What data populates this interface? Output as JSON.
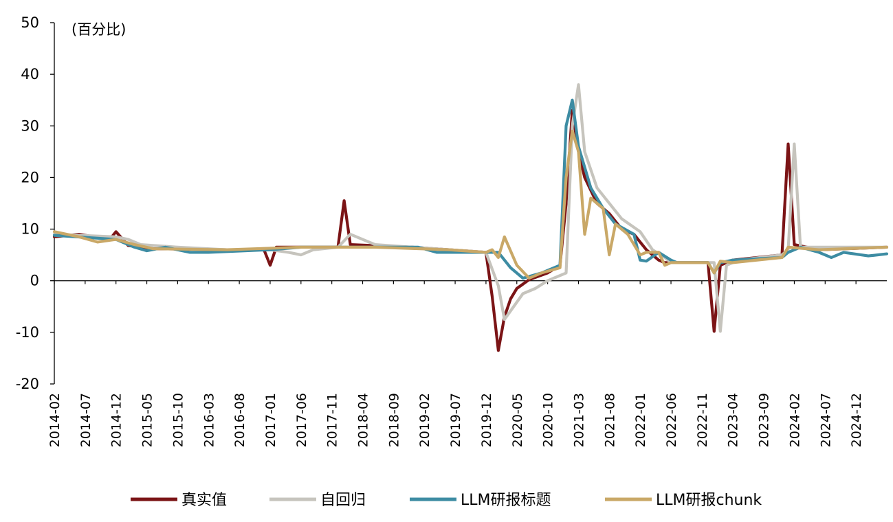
{
  "chart_data": {
    "type": "line",
    "unit_label": "(百分比)",
    "ylim": [
      -20,
      50
    ],
    "yticks": [
      50,
      40,
      30,
      20,
      10,
      0,
      -10,
      -20
    ],
    "xlim": [
      "2014-02",
      "2025-05"
    ],
    "xtick_labels": [
      "2014-02",
      "2014-07",
      "2014-12",
      "2015-05",
      "2015-10",
      "2016-03",
      "2016-08",
      "2017-01",
      "2017-06",
      "2017-11",
      "2018-04",
      "2018-09",
      "2019-02",
      "2019-07",
      "2019-12",
      "2020-05",
      "2020-10",
      "2021-03",
      "2021-08",
      "2022-01",
      "2022-06",
      "2022-11",
      "2023-04",
      "2023-09",
      "2024-02",
      "2024-07",
      "2024-12"
    ],
    "legend_position": "bottom",
    "grid": false,
    "series": [
      {
        "name": "真实值",
        "color": "#7b1416",
        "points": [
          [
            "2014-02",
            8.5
          ],
          [
            "2014-06",
            9.0
          ],
          [
            "2014-11",
            8.0
          ],
          [
            "2014-12",
            9.5
          ],
          [
            "2015-02",
            6.8
          ],
          [
            "2015-06",
            6.2
          ],
          [
            "2016-06",
            6.0
          ],
          [
            "2016-12",
            6.0
          ],
          [
            "2017-01",
            3.0
          ],
          [
            "2017-02",
            6.5
          ],
          [
            "2017-12",
            6.5
          ],
          [
            "2018-01",
            15.5
          ],
          [
            "2018-02",
            7.0
          ],
          [
            "2018-12",
            6.5
          ],
          [
            "2019-06",
            6.0
          ],
          [
            "2019-12",
            5.5
          ],
          [
            "2020-01",
            -3.0
          ],
          [
            "2020-02",
            -13.5
          ],
          [
            "2020-03",
            -7.0
          ],
          [
            "2020-04",
            -3.5
          ],
          [
            "2020-05",
            -1.5
          ],
          [
            "2020-07",
            0.2
          ],
          [
            "2020-10",
            1.5
          ],
          [
            "2020-12",
            3.0
          ],
          [
            "2021-01",
            15.0
          ],
          [
            "2021-02",
            33.0
          ],
          [
            "2021-03",
            25.0
          ],
          [
            "2021-04",
            20.0
          ],
          [
            "2021-06",
            15.0
          ],
          [
            "2021-08",
            13.0
          ],
          [
            "2021-10",
            10.0
          ],
          [
            "2021-12",
            9.0
          ],
          [
            "2022-01",
            7.5
          ],
          [
            "2022-02",
            6.0
          ],
          [
            "2022-04",
            4.0
          ],
          [
            "2022-05",
            3.5
          ],
          [
            "2022-12",
            3.5
          ],
          [
            "2023-01",
            -9.8
          ],
          [
            "2023-02",
            3.0
          ],
          [
            "2023-04",
            4.0
          ],
          [
            "2023-12",
            5.0
          ],
          [
            "2024-01",
            26.5
          ],
          [
            "2024-02",
            7.0
          ],
          [
            "2024-06",
            6.0
          ],
          [
            "2025-05",
            6.5
          ]
        ]
      },
      {
        "name": "自回归",
        "color": "#c6c4bd",
        "points": [
          [
            "2014-02",
            9.0
          ],
          [
            "2014-06",
            8.8
          ],
          [
            "2014-12",
            8.5
          ],
          [
            "2015-02",
            8.0
          ],
          [
            "2015-04",
            7.0
          ],
          [
            "2015-10",
            6.5
          ],
          [
            "2016-06",
            6.0
          ],
          [
            "2017-01",
            6.0
          ],
          [
            "2017-04",
            5.5
          ],
          [
            "2017-06",
            5.0
          ],
          [
            "2017-08",
            6.0
          ],
          [
            "2017-12",
            6.5
          ],
          [
            "2018-02",
            9.0
          ],
          [
            "2018-04",
            8.0
          ],
          [
            "2018-06",
            7.0
          ],
          [
            "2019-06",
            6.0
          ],
          [
            "2019-12",
            5.5
          ],
          [
            "2020-02",
            -1.0
          ],
          [
            "2020-03",
            -7.5
          ],
          [
            "2020-06",
            -2.5
          ],
          [
            "2020-08",
            -1.5
          ],
          [
            "2020-10",
            0.0
          ],
          [
            "2021-01",
            1.5
          ],
          [
            "2021-02",
            30.0
          ],
          [
            "2021-03",
            38.0
          ],
          [
            "2021-04",
            25.0
          ],
          [
            "2021-06",
            18.0
          ],
          [
            "2021-10",
            12.0
          ],
          [
            "2022-01",
            9.5
          ],
          [
            "2022-03",
            6.0
          ],
          [
            "2022-05",
            4.5
          ],
          [
            "2022-06",
            3.5
          ],
          [
            "2023-01",
            3.5
          ],
          [
            "2023-02",
            -9.8
          ],
          [
            "2023-03",
            3.0
          ],
          [
            "2023-05",
            4.0
          ],
          [
            "2023-12",
            5.0
          ],
          [
            "2024-01",
            6.0
          ],
          [
            "2024-02",
            26.5
          ],
          [
            "2024-03",
            6.5
          ],
          [
            "2024-06",
            6.5
          ],
          [
            "2025-05",
            6.5
          ]
        ]
      },
      {
        "name": "LLM研报标题",
        "color": "#3d8ca3",
        "points": [
          [
            "2014-02",
            8.8
          ],
          [
            "2014-12",
            8.0
          ],
          [
            "2015-03",
            6.5
          ],
          [
            "2015-05",
            5.8
          ],
          [
            "2015-08",
            6.5
          ],
          [
            "2015-12",
            5.5
          ],
          [
            "2016-03",
            5.5
          ],
          [
            "2017-01",
            6.0
          ],
          [
            "2017-06",
            6.5
          ],
          [
            "2017-12",
            6.5
          ],
          [
            "2018-06",
            6.5
          ],
          [
            "2019-01",
            6.5
          ],
          [
            "2019-04",
            5.5
          ],
          [
            "2019-12",
            5.5
          ],
          [
            "2020-02",
            5.5
          ],
          [
            "2020-04",
            2.5
          ],
          [
            "2020-06",
            0.5
          ],
          [
            "2020-09",
            1.5
          ],
          [
            "2020-12",
            3.0
          ],
          [
            "2021-01",
            30.0
          ],
          [
            "2021-02",
            35.0
          ],
          [
            "2021-03",
            26.0
          ],
          [
            "2021-05",
            18.0
          ],
          [
            "2021-07",
            14.0
          ],
          [
            "2021-09",
            11.0
          ],
          [
            "2021-12",
            9.0
          ],
          [
            "2022-01",
            4.0
          ],
          [
            "2022-02",
            3.8
          ],
          [
            "2022-04",
            5.5
          ],
          [
            "2022-06",
            4.0
          ],
          [
            "2022-07",
            3.5
          ],
          [
            "2022-12",
            3.5
          ],
          [
            "2023-01",
            1.5
          ],
          [
            "2023-02",
            3.5
          ],
          [
            "2023-04",
            4.0
          ],
          [
            "2023-12",
            4.5
          ],
          [
            "2024-01",
            5.5
          ],
          [
            "2024-03",
            6.5
          ],
          [
            "2024-06",
            5.5
          ],
          [
            "2024-08",
            4.5
          ],
          [
            "2024-10",
            5.5
          ],
          [
            "2025-02",
            4.8
          ],
          [
            "2025-05",
            5.2
          ]
        ]
      },
      {
        "name": "LLM研报chunk",
        "color": "#c9a867",
        "points": [
          [
            "2014-02",
            9.5
          ],
          [
            "2014-06",
            8.5
          ],
          [
            "2014-09",
            7.5
          ],
          [
            "2014-12",
            8.0
          ],
          [
            "2015-03",
            7.0
          ],
          [
            "2015-06",
            6.2
          ],
          [
            "2016-06",
            6.0
          ],
          [
            "2017-06",
            6.5
          ],
          [
            "2017-12",
            6.5
          ],
          [
            "2018-06",
            6.5
          ],
          [
            "2019-06",
            6.0
          ],
          [
            "2019-12",
            5.5
          ],
          [
            "2020-01",
            6.0
          ],
          [
            "2020-02",
            4.5
          ],
          [
            "2020-03",
            8.5
          ],
          [
            "2020-05",
            3.0
          ],
          [
            "2020-07",
            0.5
          ],
          [
            "2020-09",
            1.5
          ],
          [
            "2020-12",
            2.5
          ],
          [
            "2021-01",
            20.0
          ],
          [
            "2021-02",
            29.0
          ],
          [
            "2021-03",
            25.0
          ],
          [
            "2021-04",
            9.0
          ],
          [
            "2021-05",
            16.0
          ],
          [
            "2021-07",
            14.0
          ],
          [
            "2021-08",
            5.0
          ],
          [
            "2021-09",
            11.0
          ],
          [
            "2021-11",
            9.0
          ],
          [
            "2022-01",
            5.0
          ],
          [
            "2022-02",
            5.5
          ],
          [
            "2022-04",
            5.5
          ],
          [
            "2022-05",
            3.0
          ],
          [
            "2022-06",
            3.5
          ],
          [
            "2022-12",
            3.5
          ],
          [
            "2023-01",
            1.5
          ],
          [
            "2023-02",
            3.8
          ],
          [
            "2023-04",
            3.5
          ],
          [
            "2023-12",
            4.5
          ],
          [
            "2024-01",
            6.5
          ],
          [
            "2024-06",
            6.0
          ],
          [
            "2025-05",
            6.5
          ]
        ]
      }
    ]
  }
}
